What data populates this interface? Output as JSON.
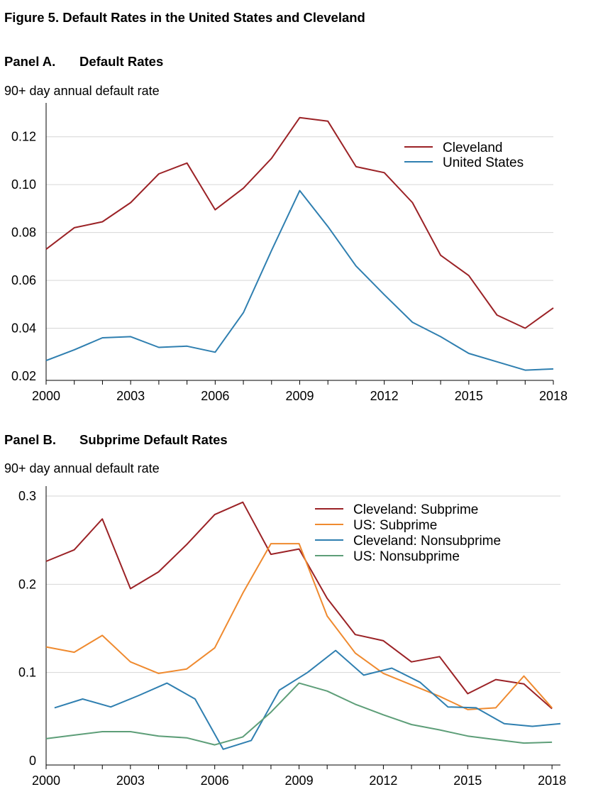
{
  "figure_title": "Figure 5. Default Rates in the United States and Cleveland",
  "panels": [
    {
      "label": "Panel A.",
      "title": "Default Rates",
      "ylabel": "90+ day annual default rate"
    },
    {
      "label": "Panel B.",
      "title": "Subprime Default Rates",
      "ylabel": "90+ day annual default rate"
    }
  ],
  "chart_data": [
    {
      "type": "line",
      "title": "Default Rates",
      "ylabel": "90+ day annual default rate",
      "xlabel": "",
      "x": [
        2000,
        2001,
        2002,
        2003,
        2004,
        2005,
        2006,
        2007,
        2008,
        2009,
        2010,
        2011,
        2012,
        2013,
        2014,
        2015,
        2016,
        2017,
        2018
      ],
      "xticks": [
        "2000",
        "2003",
        "2006",
        "2009",
        "2012",
        "2015",
        "2018"
      ],
      "xlim": [
        2000,
        2018
      ],
      "yticks": [
        "0.02",
        "0.04",
        "0.06",
        "0.08",
        "0.10",
        "0.12"
      ],
      "ylim": [
        0.02,
        0.13
      ],
      "grid": true,
      "legend_position": "top-right",
      "series": [
        {
          "name": "Cleveland",
          "color": "#9b2226",
          "values": [
            0.073,
            0.082,
            0.0845,
            0.0925,
            0.1045,
            0.109,
            0.0895,
            0.0985,
            0.111,
            0.128,
            0.1265,
            0.1075,
            0.105,
            0.0925,
            0.0705,
            0.062,
            0.0455,
            0.04,
            0.0485
          ]
        },
        {
          "name": "United States",
          "color": "#2f7fb0",
          "values": [
            0.0265,
            0.031,
            0.036,
            0.0365,
            0.032,
            0.0325,
            0.03,
            0.0465,
            0.0725,
            0.0975,
            0.0825,
            0.066,
            0.054,
            0.0425,
            0.0365,
            0.0295,
            0.026,
            0.0225,
            0.023
          ]
        }
      ]
    },
    {
      "type": "line",
      "title": "Subprime Default Rates",
      "ylabel": "90+ day annual default rate",
      "xlabel": "",
      "xticks": [
        "2000",
        "2003",
        "2006",
        "2009",
        "2012",
        "2015",
        "2018"
      ],
      "xlim": [
        2000,
        2018.3
      ],
      "yticks": [
        "0",
        "0.1",
        "0.2",
        "0.3"
      ],
      "ylim": [
        0,
        0.3
      ],
      "grid": true,
      "legend_position": "top-right",
      "series": [
        {
          "name": "Cleveland: Subprime",
          "color": "#9b2226",
          "x": [
            2000,
            2001,
            2002,
            2003,
            2004,
            2005,
            2006,
            2007,
            2008,
            2009,
            2010,
            2011,
            2012,
            2013,
            2014,
            2015,
            2016,
            2017,
            2018
          ],
          "values": [
            0.226,
            0.239,
            0.274,
            0.195,
            0.214,
            0.245,
            0.279,
            0.293,
            0.234,
            0.24,
            0.184,
            0.143,
            0.136,
            0.112,
            0.118,
            0.076,
            0.092,
            0.087,
            0.059
          ]
        },
        {
          "name": "US: Subprime",
          "color": "#ef8a2f",
          "x": [
            2000,
            2001,
            2002,
            2003,
            2004,
            2005,
            2006,
            2007,
            2008,
            2009,
            2010,
            2011,
            2012,
            2013,
            2014,
            2015,
            2016,
            2017,
            2018
          ],
          "values": [
            0.129,
            0.123,
            0.142,
            0.112,
            0.099,
            0.104,
            0.128,
            0.19,
            0.246,
            0.246,
            0.164,
            0.122,
            0.099,
            0.086,
            0.073,
            0.058,
            0.06,
            0.096,
            0.06
          ]
        },
        {
          "name": "Cleveland: Nonsubprime",
          "color": "#2f7fb0",
          "x": [
            2000.3,
            2001.3,
            2002.3,
            2003.3,
            2004.3,
            2005.3,
            2006.3,
            2007.3,
            2008.3,
            2009.3,
            2010.3,
            2011.3,
            2012.3,
            2013.3,
            2014.3,
            2015.3,
            2016.3,
            2017.3,
            2018.3
          ],
          "values": [
            0.06,
            0.07,
            0.061,
            0.074,
            0.088,
            0.07,
            0.013,
            0.023,
            0.08,
            0.1,
            0.125,
            0.097,
            0.105,
            0.089,
            0.061,
            0.06,
            0.042,
            0.039,
            0.042
          ]
        },
        {
          "name": "US: Nonsubprime",
          "color": "#5d9e78",
          "x": [
            2000,
            2001,
            2002,
            2003,
            2004,
            2005,
            2006,
            2007,
            2008,
            2009,
            2010,
            2011,
            2012,
            2013,
            2014,
            2015,
            2016,
            2017,
            2018
          ],
          "values": [
            0.025,
            0.029,
            0.033,
            0.033,
            0.028,
            0.026,
            0.018,
            0.027,
            0.055,
            0.088,
            0.079,
            0.064,
            0.052,
            0.041,
            0.035,
            0.028,
            0.024,
            0.02,
            0.021
          ]
        }
      ]
    }
  ]
}
